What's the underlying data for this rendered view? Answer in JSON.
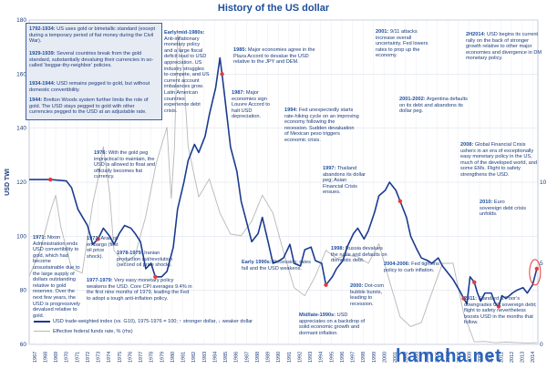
{
  "title": "History of the US dollar",
  "watermark": "hamaha.net",
  "chart_data": {
    "type": "line",
    "xlabel": "",
    "ylabel": "USD TWI",
    "xlim": [
      1967,
      2015
    ],
    "ylim_left": [
      60,
      180
    ],
    "ylim_right": [
      0,
      20
    ],
    "grid": true,
    "y_ticks_left": [
      "60",
      "80",
      "100",
      "120",
      "140",
      "160",
      "180"
    ],
    "y_ticks_right": [
      "0",
      "5",
      "10"
    ],
    "x_ticks": [
      "1967",
      "1968",
      "1969",
      "1970",
      "1971",
      "1972",
      "1973",
      "1974",
      "1975",
      "1976",
      "1977",
      "1978",
      "1979",
      "1980",
      "1981",
      "1982",
      "1983",
      "1984",
      "1985",
      "1986",
      "1987",
      "1988",
      "1989",
      "1990",
      "1991",
      "1992",
      "1993",
      "1994",
      "1995",
      "1996",
      "1997",
      "1998",
      "1999",
      "2000",
      "2001",
      "2002",
      "2003",
      "2004",
      "2005",
      "2006",
      "2007",
      "2008",
      "2009",
      "2010",
      "2011",
      "2012",
      "2013",
      "2014"
    ],
    "series": [
      {
        "name": "USD trade-weighted index (vs. G10), 1975-1976 = 100; ↑ stronger dollar, ↓ weaker dollar",
        "color": "#1b3b8f",
        "x": [
          1967,
          1969,
          1970.5,
          1971,
          1971.6,
          1972.5,
          1973,
          1973.5,
          1974,
          1974.6,
          1975,
          1975.5,
          1976,
          1976.6,
          1977,
          1977.5,
          1978,
          1978.5,
          1978.9,
          1979.5,
          1980,
          1980.6,
          1981,
          1981.6,
          1982,
          1982.6,
          1983,
          1983.6,
          1984,
          1984.6,
          1985,
          1985.2,
          1985.5,
          1986,
          1986.6,
          1987,
          1987.6,
          1988,
          1988.6,
          1989,
          1989.6,
          1990,
          1990.6,
          1991,
          1991.6,
          1992,
          1992.6,
          1993,
          1993.6,
          1994,
          1994.6,
          1995,
          1995.6,
          1996,
          1996.6,
          1997,
          1997.6,
          1998,
          1998.6,
          1999,
          1999.6,
          2000,
          2000.6,
          2001,
          2001.6,
          2002,
          2002.6,
          2003,
          2003.6,
          2004,
          2004.6,
          2005,
          2005.6,
          2006,
          2006.6,
          2007,
          2007.6,
          2008,
          2008.3,
          2008.6,
          2009,
          2009.3,
          2009.6,
          2010,
          2010.6,
          2011,
          2011.3,
          2011.6,
          2012,
          2012.6,
          2013,
          2013.6,
          2014,
          2014.5,
          2014.9
        ],
        "values": [
          121,
          121,
          120.5,
          118,
          110,
          104,
          97,
          99,
          103,
          100,
          97,
          101,
          104,
          103,
          101,
          98,
          88,
          90,
          85,
          85,
          87,
          96,
          110,
          120,
          128,
          134,
          131,
          137,
          145,
          155,
          166,
          160,
          150,
          133,
          124,
          113,
          104,
          98,
          101,
          107,
          97,
          90,
          91,
          92,
          97,
          90,
          89,
          95,
          96,
          91,
          90,
          82,
          85,
          88,
          91,
          96,
          101,
          103,
          99,
          102,
          109,
          115,
          117,
          120,
          117,
          113,
          107,
          100,
          95,
          92,
          91,
          90,
          92,
          89,
          86,
          84,
          80,
          77,
          75,
          85,
          83,
          79,
          76,
          79,
          79,
          75,
          74,
          78,
          77,
          79,
          80,
          81,
          79,
          82,
          88
        ]
      },
      {
        "name": "Effective federal funds rate, % (rhs)",
        "color": "#b8b8b8",
        "x": [
          1967,
          1968,
          1969,
          1969.5,
          1970,
          1971,
          1972,
          1973,
          1973.6,
          1974,
          1974.6,
          1975,
          1976,
          1977,
          1978,
          1979,
          1980,
          1980.4,
          1980.7,
          1981,
          1981.5,
          1982,
          1983,
          1984,
          1985,
          1986,
          1987,
          1988,
          1989,
          1990,
          1991,
          1992,
          1993,
          1994,
          1995,
          1996,
          1997,
          1998,
          1999,
          2000,
          2001,
          2002,
          2003,
          2004,
          2005,
          2006,
          2007,
          2008,
          2009,
          2010,
          2011,
          2012,
          2013,
          2014,
          2014.9
        ],
        "values": [
          4.2,
          5.7,
          8.2,
          9.2,
          7.2,
          4.7,
          4.4,
          8.7,
          10.5,
          12.2,
          9.3,
          5.8,
          5.0,
          5.5,
          7.9,
          11.2,
          13.4,
          9.0,
          12.0,
          19.1,
          17.5,
          12.2,
          9.1,
          10.2,
          8.1,
          6.8,
          6.7,
          7.6,
          9.2,
          8.1,
          5.7,
          3.5,
          3.0,
          4.2,
          5.8,
          5.3,
          5.5,
          5.4,
          5.0,
          6.2,
          3.9,
          1.7,
          1.1,
          1.35,
          3.2,
          5.0,
          5.0,
          1.9,
          0.16,
          0.18,
          0.1,
          0.14,
          0.11,
          0.09,
          0.1
        ]
      }
    ],
    "highlighted_points_years": [
      1969,
      1973.5,
      1978.9,
      1985.2,
      1995,
      2002,
      2008,
      2009,
      2011.3,
      2014.9
    ]
  },
  "info_box": [
    {
      "head": "1792-1934:",
      "body": " US uses gold or bimetallic standard (except during a temporary period of fiat money during the Civil War)."
    },
    {
      "head": "1929-1939:",
      "body": " Several countries break from the gold standard, substantially devaluing their currencies in so-called ‘beggar-thy-neighbor’ policies."
    },
    {
      "head": "1934-1944:",
      "body": " USD remains pegged to gold, but without domestic convertibility."
    },
    {
      "head": "1944:",
      "body": " Bretton Woods system further limits the role of gold. The USD stays pegged to gold with other currencies pegged to the USD at an adjustable rate."
    }
  ],
  "annotations": [
    {
      "head": "1971:",
      "body": " Nixon Administration ends USD convertibility to gold, which had become unsustainable due to the large supply of dollars outstanding relative to gold reserves. Over the next few years, the USD is progressively devalued relative to gold."
    },
    {
      "head": "1976:",
      "body": " With the gold peg impractical to maintain, the USD is allowed to float and officially becomes fiat currency."
    },
    {
      "head": "1973:",
      "body": " Arab oil embargo (first oil price shock)."
    },
    {
      "head": "1978-1979:",
      "body": " Iranian production cut/revolution (second oil price shock)."
    },
    {
      "head": "1977-1979:",
      "body": " Very easy monetary policy weakens the USD. Core CPI averages 9.4% in the first nine months of 1979, leading the Fed to adopt a tough anti-inflation policy."
    },
    {
      "head": "Early/mid-1980s:",
      "body": " Anti-inflationary monetary policy and a large fiscal deficit lead to USD appreciation. US industry struggles to compete, and US current account imbalances grow. Latin American countries experience debt crisis."
    },
    {
      "head": "1985:",
      "body": " Major economies agree in the Plaza Accord to devalue the USD relative to the JPY and DEM."
    },
    {
      "head": "1987:",
      "body": " Major economies sign Louvre Accord to halt USD depreciation."
    },
    {
      "head": "1994:",
      "body": " Fed unexpectedly starts rate-hiking cycle on an improving economy following the recession. Sudden devaluation of Mexican peso triggers economic crisis."
    },
    {
      "head": "1997:",
      "body": " Thailand abandons its dollar peg; Asian Financial Crisis ensues."
    },
    {
      "head": "Early 1990s:",
      "body": " Recession; rates fall and the USD weakens."
    },
    {
      "head": "1998:",
      "body": " Russia devalues the ruble and defaults on domestic debt."
    },
    {
      "head": "2000:",
      "body": " Dot-com bubble bursts, leading to recession."
    },
    {
      "head": "Mid/late-1990s:",
      "body": " USD appreciates on a backdrop of solid economic growth and dormant inflation."
    },
    {
      "head": "2001:",
      "body": " 9/11 attacks increase overall uncertainty. Fed lowers rates to prop up the economy."
    },
    {
      "head": "2001-2002:",
      "body": " Argentina defaults on its debt and abandons its dollar peg."
    },
    {
      "head": "2004-2006:",
      "body": " Fed tightens policy to curb inflation."
    },
    {
      "head": "2H2014:",
      "body": " USD begins its current rally on the back of stronger growth relative to other major economies and divergence in DM monetary policy."
    },
    {
      "head": "2008:",
      "body": " Global Financial Crisis ushers in an era of exceptionally easy monetary policy in the US, much of the developed world, and some EMs. Flight to safety strengthens the USD."
    },
    {
      "head": "2010:",
      "body": " Euro sovereign debt crisis unfolds."
    },
    {
      "head": "2011:",
      "body": " Standard & Poor’s downgrades US sovereign debt; flight to safety nevertheless boosts USD in the months that follow."
    }
  ]
}
